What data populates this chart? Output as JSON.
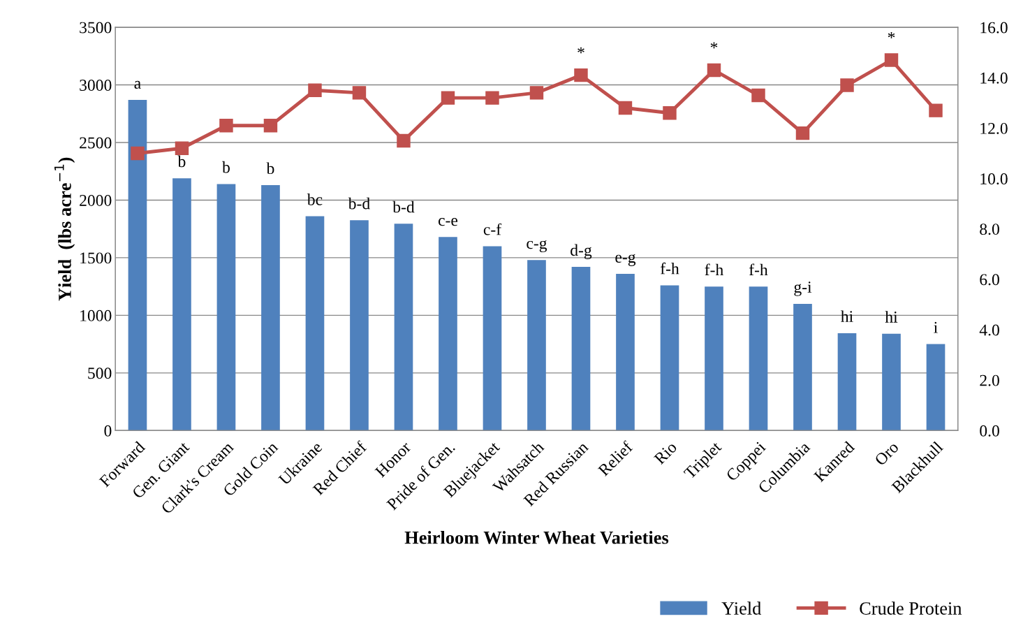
{
  "chart_data": {
    "type": "bar",
    "xlabel": "Heirloom Winter Wheat Varieties",
    "ylabel": "Yield  (lbs acre$^{−1}$)",
    "categories": [
      "Forward",
      "Gen. Giant",
      "Clark's Cream",
      "Gold Coin",
      "Ukraine",
      "Red Chief",
      "Honor",
      "Pride of Gen.",
      "Bluejacket",
      "Wahsatch",
      "Red Russian",
      "Relief",
      "Rio",
      "Triplet",
      "Coppei",
      "Columbia",
      "Kanred",
      "Oro",
      "Blackhull"
    ],
    "series": [
      {
        "name": "Yield",
        "color": "#4f81bd",
        "values": [
          2870,
          2190,
          2140,
          2130,
          1860,
          1825,
          1795,
          1680,
          1600,
          1480,
          1420,
          1360,
          1260,
          1250,
          1250,
          1100,
          845,
          840,
          750
        ],
        "value_labels": [
          "a",
          "b",
          "b",
          "b",
          "bc",
          "b-d",
          "b-d",
          "c-e",
          "c-f",
          "c-g",
          "d-g",
          "e-g",
          "f-h",
          "f-h",
          "f-h",
          "g-i",
          "hi",
          "hi",
          "i"
        ]
      },
      {
        "name": "Crude Protein",
        "type": "line",
        "axis": "y2",
        "color": "#c0504d",
        "marker": "square",
        "line_style": "solid",
        "values": [
          11.0,
          11.2,
          12.1,
          12.1,
          13.5,
          13.4,
          11.5,
          13.2,
          13.2,
          13.4,
          14.1,
          12.8,
          12.6,
          14.3,
          13.3,
          11.8,
          13.7,
          14.7,
          12.7
        ],
        "value_labels": [
          null,
          null,
          null,
          null,
          null,
          null,
          null,
          null,
          null,
          null,
          "*",
          null,
          null,
          "*",
          null,
          null,
          null,
          "*",
          null
        ]
      }
    ],
    "ylim": [
      0,
      3500
    ],
    "yticks": [
      0,
      500,
      1000,
      1500,
      2000,
      2500,
      3000,
      3500
    ],
    "y2lim": [
      0,
      16
    ],
    "y2ticks": [
      {
        "value": 0,
        "label": "0.0"
      },
      {
        "value": 2,
        "label": "2.0"
      },
      {
        "value": 4,
        "label": "4.0"
      },
      {
        "value": 6,
        "label": "6.0"
      },
      {
        "value": 8,
        "label": "8.0"
      },
      {
        "value": 10,
        "label": "10.0"
      },
      {
        "value": 12,
        "label": "12.0"
      },
      {
        "value": 14,
        "label": "14.0"
      },
      {
        "value": 16,
        "label": "16.0"
      }
    ],
    "grid": "y",
    "legend": "bottom right"
  }
}
